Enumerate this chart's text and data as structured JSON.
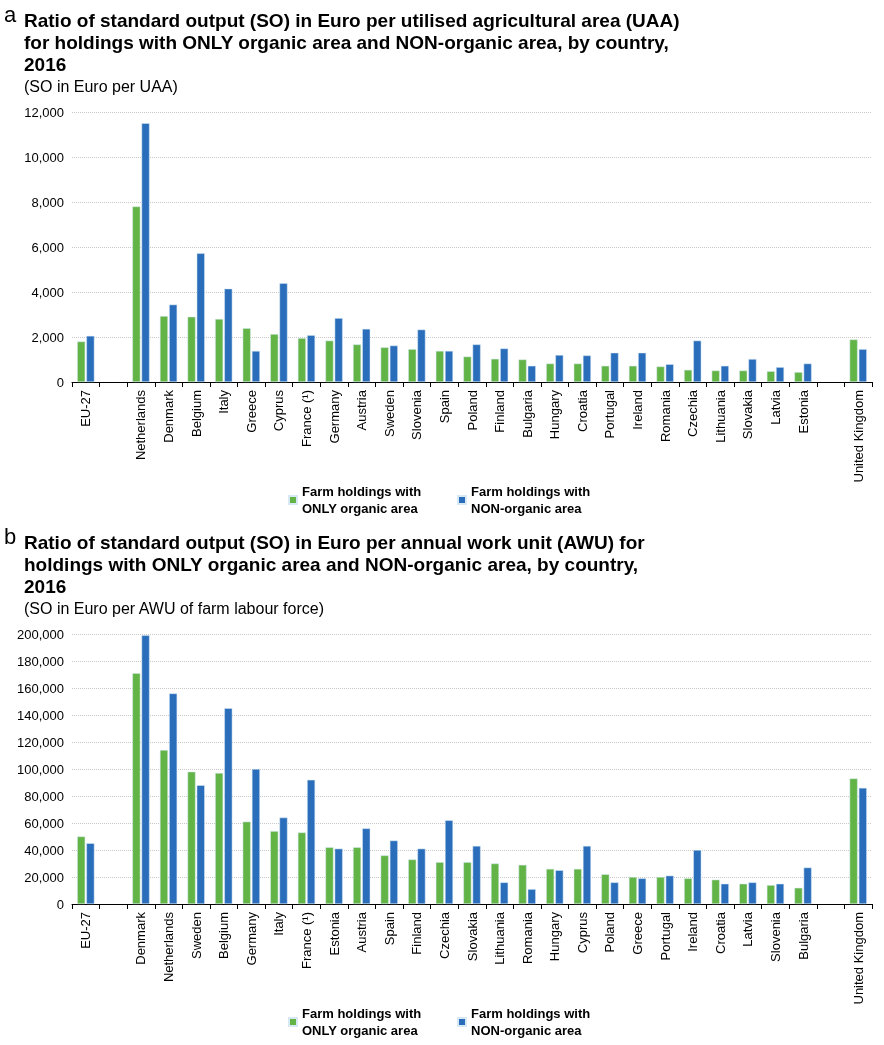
{
  "chart_data": [
    {
      "type": "bar",
      "title": "Ratio of standard output (SO) in Euro per utilised agricultural area (UAA) for holdings with ONLY organic area and NON-organic area, by country, 2016",
      "subtitle": "(SO in Euro per UAA)",
      "annotations": [
        "a"
      ],
      "categories": [
        "EU-27",
        null,
        "Netherlands",
        "Denmark",
        "Belgium",
        "Italy",
        "Greece",
        "Cyprus",
        "France (¹)",
        "Germany",
        "Austria",
        "Sweden",
        "Slovenia",
        "Spain",
        "Poland",
        "Finland",
        "Bulgaria",
        "Hungary",
        "Croatia",
        "Portugal",
        "Ireland",
        "Romania",
        "Czechia",
        "Lithuania",
        "Slovakia",
        "Latvia",
        "Estonia",
        null,
        "United Kingdom"
      ],
      "series": [
        {
          "name": "Farm holdings with ONLY organic area",
          "color": "#62b446",
          "values": [
            1800,
            null,
            7800,
            2930,
            2900,
            2800,
            2390,
            2130,
            1950,
            1840,
            1670,
            1540,
            1460,
            1380,
            1130,
            1030,
            1000,
            820,
            820,
            720,
            720,
            690,
            540,
            510,
            510,
            480,
            440,
            null,
            1890
          ]
        },
        {
          "name": "Farm holdings with NON-organic area",
          "color": "#2a6ebb",
          "values": [
            2050,
            null,
            11500,
            3440,
            5720,
            4150,
            1380,
            4390,
            2080,
            2840,
            2360,
            1620,
            2330,
            1380,
            1670,
            1490,
            720,
            1200,
            1180,
            1300,
            1300,
            790,
            1840,
            720,
            1020,
            660,
            820,
            null,
            1460
          ]
        }
      ],
      "ylim": [
        0,
        12000
      ],
      "yticks": [
        0,
        {
          "value": 2000,
          "label": "2,000"
        },
        {
          "value": 4000,
          "label": "4,000"
        },
        {
          "value": 6000,
          "label": "6,000"
        },
        {
          "value": 8000,
          "label": "8,000"
        },
        {
          "value": 10000,
          "label": "10,000"
        },
        {
          "value": 12000,
          "label": "12,000"
        }
      ],
      "grid": "y",
      "legend": "bottom"
    },
    {
      "type": "bar",
      "title": "Ratio of standard output (SO) in Euro per annual work unit (AWU) for holdings with ONLY organic area and NON-organic area, by country, 2016",
      "subtitle": "(SO in Euro per AWU of farm labour force)",
      "annotations": [
        "b"
      ],
      "categories": [
        "EU-27",
        null,
        "Denmark",
        "Netherlands",
        "Sweden",
        "Belgium",
        "Germany",
        "Italy",
        "France (¹)",
        "Estonia",
        "Austria",
        "Spain",
        "Finland",
        "Czechia",
        "Slovakia",
        "Lithuania",
        "Romania",
        "Hungary",
        "Cyprus",
        "Poland",
        "Greece",
        "Portugal",
        "Ireland",
        "Croatia",
        "Latvia",
        "Slovenia",
        "Bulgaria",
        null,
        "United Kingdom"
      ],
      "series": [
        {
          "name": "Farm holdings with ONLY organic area",
          "color": "#62b446",
          "values": [
            50000,
            null,
            171000,
            114000,
            98000,
            97000,
            61000,
            54000,
            53000,
            42000,
            42000,
            36000,
            33000,
            31000,
            31000,
            30000,
            29000,
            26000,
            26000,
            22000,
            20000,
            20000,
            19000,
            18000,
            15000,
            14000,
            12000,
            null,
            93000
          ]
        },
        {
          "name": "Farm holdings with NON-organic area",
          "color": "#2a6ebb",
          "values": [
            45000,
            null,
            199000,
            156000,
            88000,
            145000,
            100000,
            64000,
            92000,
            41000,
            56000,
            47000,
            41000,
            62000,
            43000,
            16000,
            11000,
            25000,
            43000,
            16000,
            19000,
            21000,
            40000,
            15000,
            16000,
            15000,
            27000,
            null,
            86000
          ]
        }
      ],
      "ylim": [
        0,
        200000
      ],
      "yticks": [
        0,
        {
          "value": 20000,
          "label": "20,000"
        },
        {
          "value": 40000,
          "label": "40,000"
        },
        {
          "value": 60000,
          "label": "60,000"
        },
        {
          "value": 80000,
          "label": "80,000"
        },
        {
          "value": 100000,
          "label": "100,000"
        },
        {
          "value": 120000,
          "label": "120,000"
        },
        {
          "value": 140000,
          "label": "140,000"
        },
        {
          "value": 160000,
          "label": "160,000"
        },
        {
          "value": 180000,
          "label": "180,000"
        },
        {
          "value": 200000,
          "label": "200,000"
        }
      ],
      "grid": "y",
      "legend": "bottom"
    }
  ]
}
